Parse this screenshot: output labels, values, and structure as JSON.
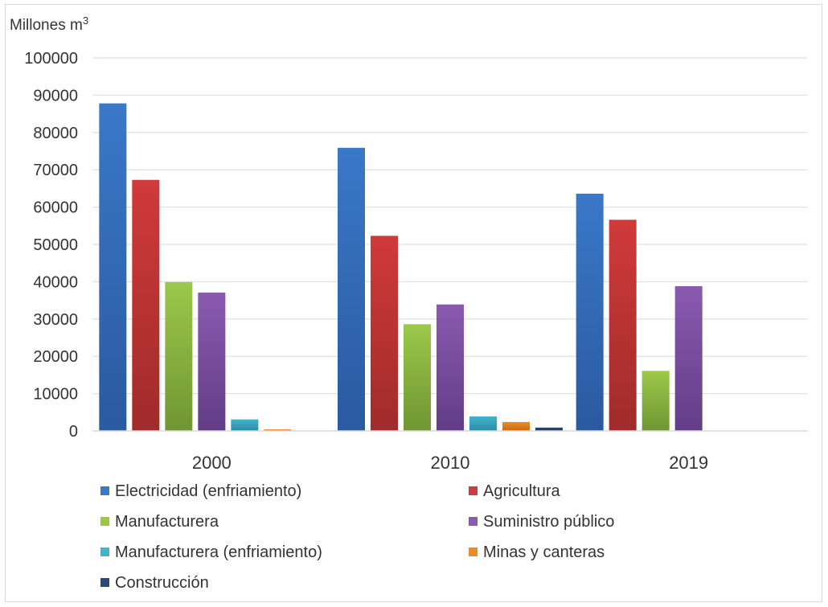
{
  "chart_data": {
    "type": "bar",
    "unit_label": "Millones m",
    "unit_superscript": "3",
    "categories": [
      "2000",
      "2010",
      "2019"
    ],
    "ylim": [
      0,
      100000
    ],
    "yticks": [
      "0",
      "10000",
      "20000",
      "30000",
      "40000",
      "50000",
      "60000",
      "70000",
      "80000",
      "90000",
      "100000"
    ],
    "grid": true,
    "legend_position": "bottom",
    "series": [
      {
        "name": "Electricidad (enfriamiento)",
        "color": "#3a78c8",
        "color_dark": "#2a5aa0",
        "values": [
          87800,
          75900,
          63600
        ]
      },
      {
        "name": "Agricultura",
        "color": "#d03a3a",
        "color_dark": "#a12b2b",
        "values": [
          67300,
          52300,
          56600
        ]
      },
      {
        "name": "Manufacturera",
        "color": "#9cc84a",
        "color_dark": "#6f9632",
        "values": [
          39900,
          28600,
          16100
        ]
      },
      {
        "name": "Suministro público",
        "color": "#8a5ab0",
        "color_dark": "#623d86",
        "values": [
          37100,
          33900,
          38800
        ]
      },
      {
        "name": "Manufacturera (enfriamiento)",
        "color": "#3fb4d0",
        "color_dark": "#2b8ca6",
        "values": [
          3100,
          3900,
          0
        ]
      },
      {
        "name": "Minas y canteras",
        "color": "#f08a24",
        "color_dark": "#c86a12",
        "values": [
          400,
          2400,
          0
        ]
      },
      {
        "name": "Construcción",
        "color": "#2a4a78",
        "color_dark": "#1d3558",
        "values": [
          0,
          900,
          0
        ]
      }
    ]
  }
}
